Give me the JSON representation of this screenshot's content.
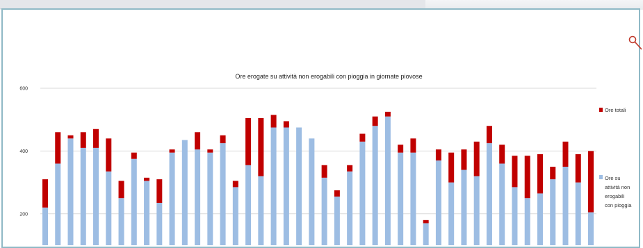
{
  "chart_data": {
    "type": "bar",
    "stacked": true,
    "title": "Ore erogate su attività non erogabili con pioggia in giornate piovose",
    "xlabel": "",
    "ylabel": "",
    "ylim": [
      100,
      600
    ],
    "yticks": [
      200,
      400,
      600
    ],
    "ytick_labels": [
      "200",
      "400",
      "600"
    ],
    "grid": true,
    "legend_position": "right",
    "series": [
      {
        "name": "Ore su attività non erogabili con pioggia",
        "color": "#9dbde3",
        "values": [
          220,
          360,
          440,
          410,
          410,
          335,
          250,
          375,
          305,
          235,
          395,
          435,
          405,
          395,
          425,
          285,
          355,
          320,
          475,
          475,
          475,
          440,
          315,
          255,
          335,
          430,
          480,
          510,
          395,
          395,
          170,
          370,
          300,
          340,
          320,
          425,
          360,
          285,
          250,
          265,
          310,
          350,
          300,
          205
        ]
      },
      {
        "name": "Ore totali",
        "color": "#c00000",
        "values": [
          90,
          100,
          10,
          50,
          60,
          105,
          55,
          20,
          10,
          75,
          10,
          0,
          55,
          10,
          25,
          20,
          150,
          185,
          40,
          20,
          0,
          0,
          40,
          20,
          20,
          25,
          30,
          15,
          25,
          45,
          10,
          35,
          95,
          65,
          110,
          55,
          60,
          100,
          135,
          125,
          40,
          80,
          90,
          195
        ]
      }
    ]
  },
  "legend": {
    "total_label": "Ore totali",
    "inner_lines": [
      "Ore su",
      "attività non",
      "erogabili",
      "con pioggia"
    ]
  },
  "colors": {
    "frame": "#8fb9c6",
    "bar_blue": "#9dbde3",
    "bar_red": "#c00000",
    "icon": "#c0392b"
  },
  "icons": {
    "zoom": "magnifier-icon"
  }
}
